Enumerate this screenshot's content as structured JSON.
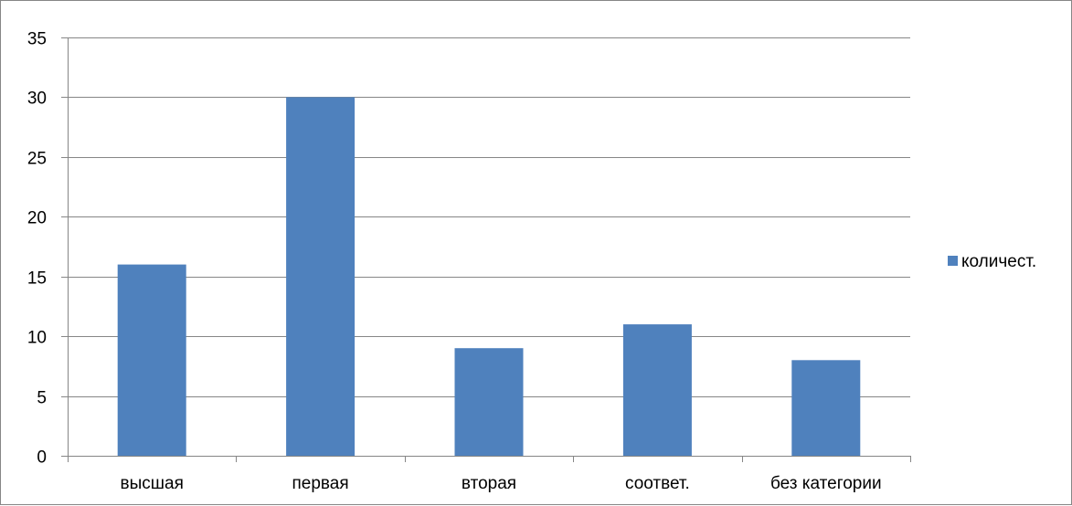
{
  "chart_data": {
    "type": "bar",
    "categories": [
      "высшая",
      "первая",
      "вторая",
      "соответ.",
      "без категории"
    ],
    "series": [
      {
        "name": "количест.",
        "values": [
          16,
          30,
          9,
          11,
          8
        ],
        "color": "#4F81BD"
      }
    ],
    "title": "",
    "xlabel": "",
    "ylabel": "",
    "ylim": [
      0,
      35
    ],
    "yticks": [
      0,
      5,
      10,
      15,
      20,
      25,
      30,
      35
    ],
    "grid": true,
    "legend_position": "right"
  },
  "colors": {
    "gridline": "#868686",
    "axis": "#868686",
    "frame": "#868686"
  }
}
